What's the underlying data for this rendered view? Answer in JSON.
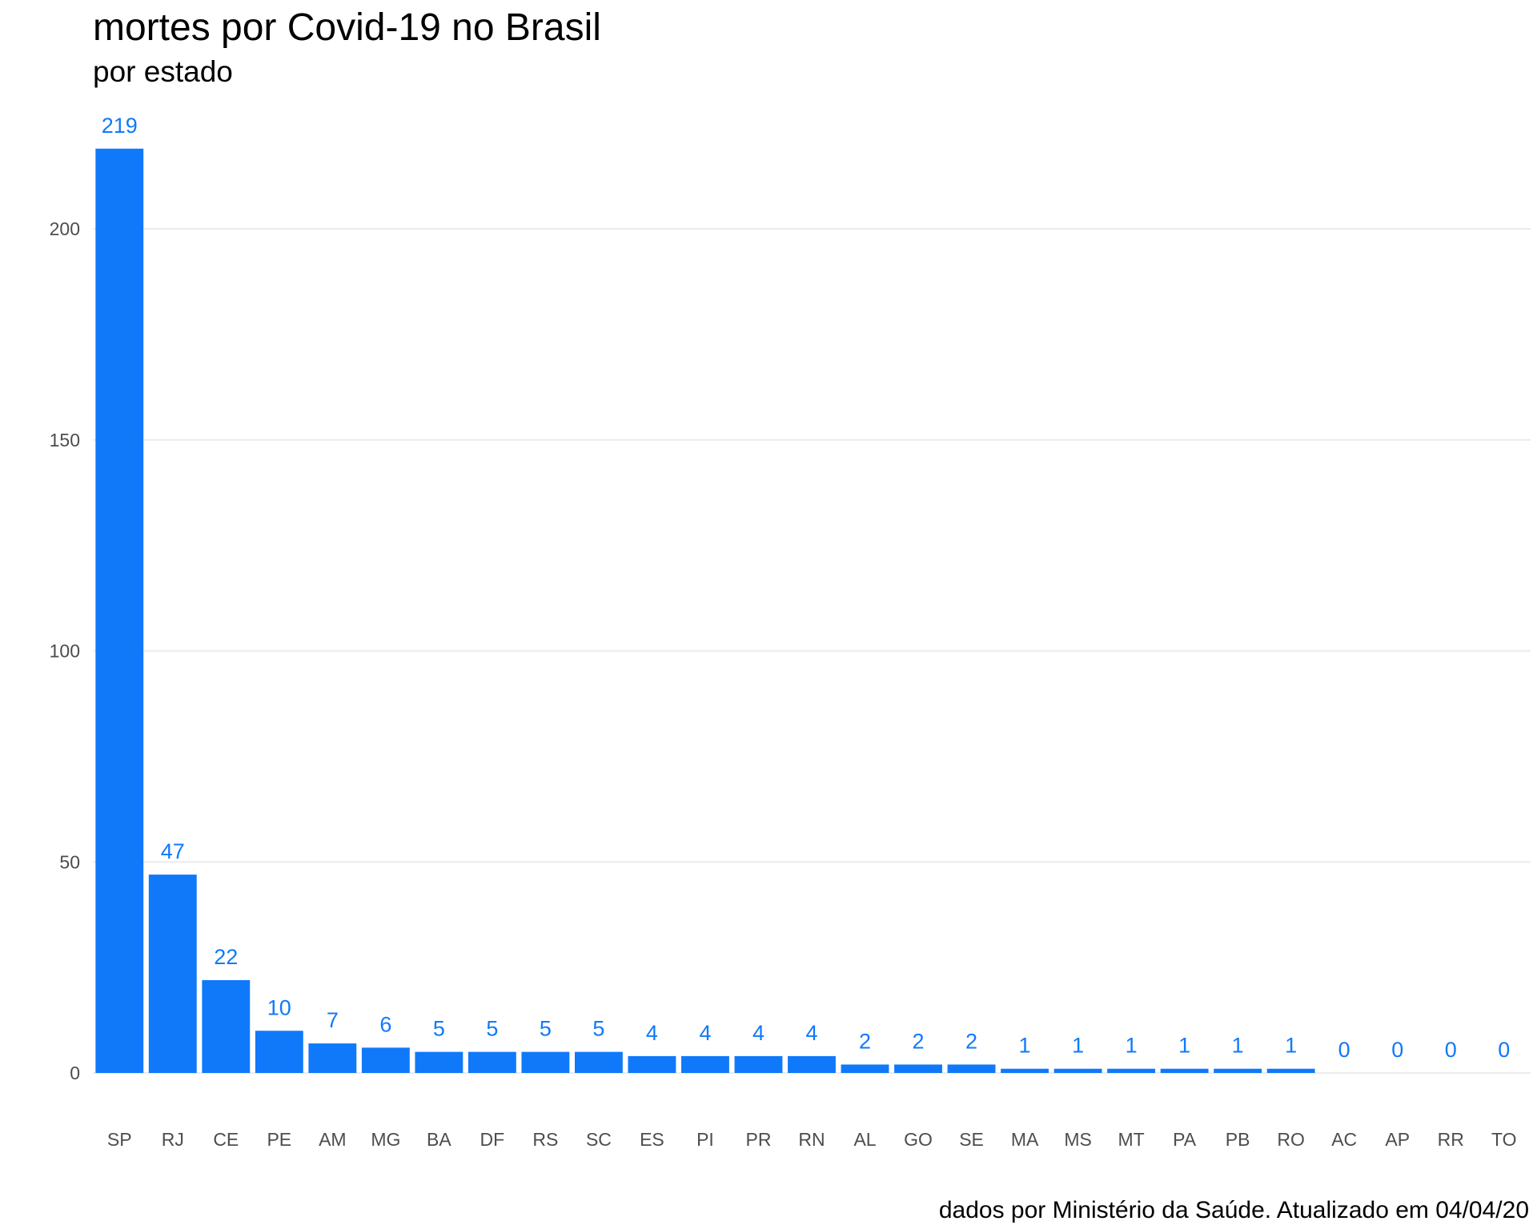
{
  "colors": {
    "bar": "#1079fa",
    "label": "#1079fa",
    "grid": "#ebebeb",
    "tick_text": "#4d4d4d",
    "background": "#ffffff"
  },
  "chart_data": {
    "type": "bar",
    "title": "mortes por Covid-19 no Brasil",
    "subtitle": "por estado",
    "caption": "dados por Ministério da Saúde. Atualizado em 04/04/20",
    "xlabel": "",
    "ylabel": "",
    "ylim": [
      0,
      225
    ],
    "yticks": [
      0,
      50,
      100,
      150,
      200
    ],
    "grid": true,
    "legend": "none",
    "categories": [
      "SP",
      "RJ",
      "CE",
      "PE",
      "AM",
      "MG",
      "BA",
      "DF",
      "RS",
      "SC",
      "ES",
      "PI",
      "PR",
      "RN",
      "AL",
      "GO",
      "SE",
      "MA",
      "MS",
      "MT",
      "PA",
      "PB",
      "RO",
      "AC",
      "AP",
      "RR",
      "TO"
    ],
    "values": [
      219,
      47,
      22,
      10,
      7,
      6,
      5,
      5,
      5,
      5,
      4,
      4,
      4,
      4,
      2,
      2,
      2,
      1,
      1,
      1,
      1,
      1,
      1,
      0,
      0,
      0,
      0
    ],
    "data_labels": [
      "219",
      "47",
      "22",
      "10",
      "7",
      "6",
      "5",
      "5",
      "5",
      "5",
      "4",
      "4",
      "4",
      "4",
      "2",
      "2",
      "2",
      "1",
      "1",
      "1",
      "1",
      "1",
      "1",
      "0",
      "0",
      "0",
      "0"
    ]
  }
}
